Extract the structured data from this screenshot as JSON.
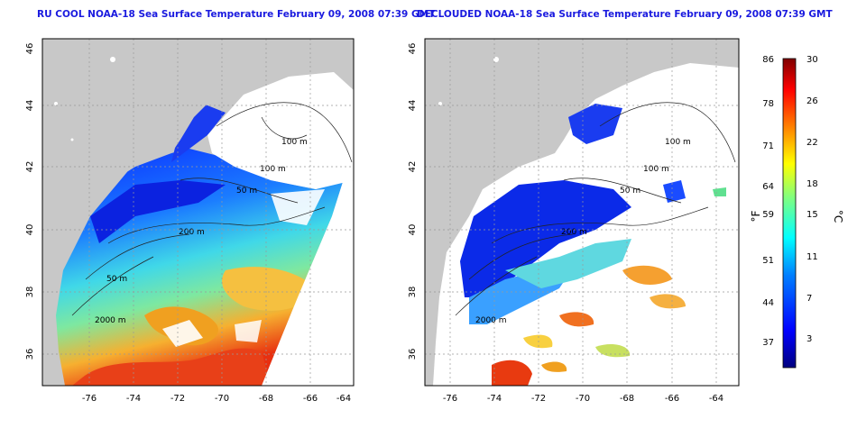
{
  "left_map": {
    "title": "RU COOL NOAA-18 Sea Surface Temperature February 09, 2008 07:39 GMT",
    "lat_ticks": [
      "46",
      "44",
      "42",
      "40",
      "38",
      "36"
    ],
    "lon_ticks": [
      "-76",
      "-74",
      "-72",
      "-70",
      "-68",
      "-66",
      "-64"
    ],
    "contour_labels": [
      "100 m",
      "100 m",
      "50 m",
      "200 m",
      "50 m",
      "2000 m"
    ]
  },
  "right_map": {
    "title": "DECLOUDED NOAA-18 Sea Surface Temperature February 09, 2008 07:39 GMT",
    "lat_ticks": [
      "46",
      "44",
      "42",
      "40",
      "38",
      "36"
    ],
    "lon_ticks": [
      "-76",
      "-74",
      "-72",
      "-70",
      "-68",
      "-66",
      "-64"
    ],
    "contour_labels": [
      "100 m",
      "100 m",
      "50 m",
      "200 m",
      "2000 m"
    ]
  },
  "colorbar": {
    "f_unit": "°F",
    "c_unit": "°C",
    "f_ticks": [
      "86",
      "78",
      "71",
      "64",
      "59",
      "51",
      "44",
      "37"
    ],
    "c_ticks": [
      "30",
      "26",
      "22",
      "18",
      "15",
      "11",
      "7",
      "3"
    ],
    "colors": [
      "#00007f",
      "#0000ff",
      "#0080ff",
      "#00ffff",
      "#80ff80",
      "#ffff00",
      "#ff8000",
      "#ff0000",
      "#7f0000"
    ]
  }
}
